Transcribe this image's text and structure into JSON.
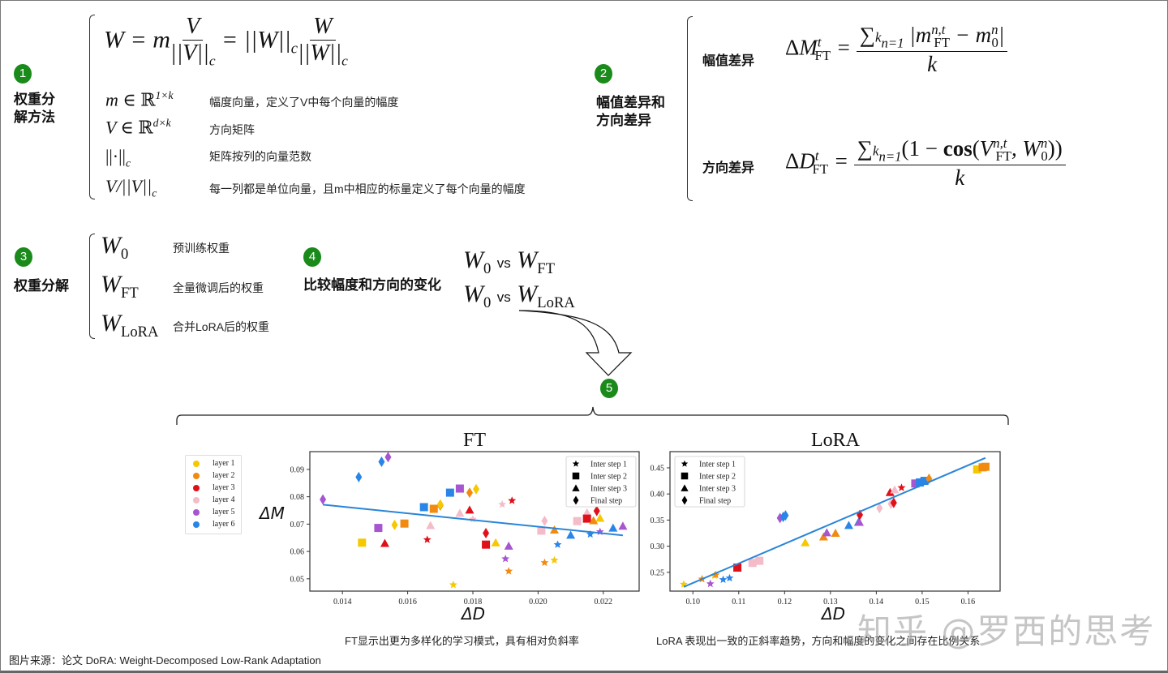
{
  "section1": {
    "badge": "1",
    "title_line1": "权重分",
    "title_line2": "解方法",
    "formula": "W = m V/||V||_c = ||W||_c W/||W||_c",
    "rows": [
      {
        "symbol": "m ∈ ℝ^(1×k)",
        "desc": "幅度向量，定义了V中每个向量的幅度"
      },
      {
        "symbol": "V ∈ ℝ^(d×k)",
        "desc": "方向矩阵"
      },
      {
        "symbol": "||·||_c",
        "desc": "矩阵按列的向量范数"
      },
      {
        "symbol": "V/||V||_c",
        "desc": "每一列都是单位向量，且m中相应的标量定义了每个向量的幅度"
      }
    ]
  },
  "section2": {
    "badge": "2",
    "title_line1": "幅值差异和",
    "title_line2": "方向差异",
    "magnitude_label": "幅值差异",
    "direction_label": "方向差异",
    "magnitude_formula": "ΔM_FT^t = Σ_{n=1}^k |m_FT^{n,t} − m_0^n| / k",
    "direction_formula": "ΔD_FT^t = Σ_{n=1}^k (1 − cos(V_FT^{n,t}, W_0^n)) / k"
  },
  "section3": {
    "badge": "3",
    "title": "权重分解",
    "rows": [
      {
        "symbol": "W_0",
        "desc": "预训练权重"
      },
      {
        "symbol": "W_FT",
        "desc": "全量微调后的权重"
      },
      {
        "symbol": "W_LoRA",
        "desc": "合并LoRA后的权重"
      }
    ]
  },
  "section4": {
    "badge": "4",
    "title": "比较幅度和方向的变化",
    "vs": "vs",
    "comparisons": [
      "W_0 vs W_FT",
      "W_0 vs W_LoRA"
    ]
  },
  "section5": {
    "badge": "5"
  },
  "layer_legend": [
    {
      "label": "layer 1",
      "color": "#f5c800"
    },
    {
      "label": "layer 2",
      "color": "#f08a10"
    },
    {
      "label": "layer 3",
      "color": "#e0101a"
    },
    {
      "label": "layer 4",
      "color": "#f4bcc8"
    },
    {
      "label": "layer 5",
      "color": "#a855d0"
    },
    {
      "label": "layer 6",
      "color": "#2a85e8"
    }
  ],
  "step_legend": [
    "Inter step 1",
    "Inter step 2",
    "Inter step 3",
    "Final step"
  ],
  "fit_line_color": "#2a85d8",
  "chart_data": [
    {
      "type": "scatter",
      "title": "FT",
      "xlabel": "ΔD",
      "ylabel": "ΔM",
      "xlim": [
        0.013,
        0.0231
      ],
      "ylim": [
        0.0455,
        0.0965
      ],
      "xticks": [
        "0.014",
        "0.016",
        "0.018",
        "0.020",
        "0.022"
      ],
      "yticks": [
        "0.05",
        "0.06",
        "0.07",
        "0.08",
        "0.09"
      ],
      "trend_line": {
        "x": [
          0.0134,
          0.0226
        ],
        "y": [
          0.0771,
          0.0659
        ]
      },
      "points": [
        {
          "x": 0.0134,
          "y": 0.079,
          "layer": 5,
          "step": "final"
        },
        {
          "x": 0.0145,
          "y": 0.0872,
          "layer": 6,
          "step": "final"
        },
        {
          "x": 0.0152,
          "y": 0.0928,
          "layer": 6,
          "step": "final"
        },
        {
          "x": 0.0154,
          "y": 0.0945,
          "layer": 5,
          "step": "final"
        },
        {
          "x": 0.0146,
          "y": 0.0632,
          "layer": 1,
          "step": "2"
        },
        {
          "x": 0.0151,
          "y": 0.0686,
          "layer": 5,
          "step": "2"
        },
        {
          "x": 0.0153,
          "y": 0.063,
          "layer": 3,
          "step": "3"
        },
        {
          "x": 0.0156,
          "y": 0.0697,
          "layer": 1,
          "step": "final"
        },
        {
          "x": 0.0159,
          "y": 0.0702,
          "layer": 2,
          "step": "2"
        },
        {
          "x": 0.0165,
          "y": 0.0762,
          "layer": 6,
          "step": "2"
        },
        {
          "x": 0.0166,
          "y": 0.0643,
          "layer": 3,
          "step": "1"
        },
        {
          "x": 0.0167,
          "y": 0.0695,
          "layer": 4,
          "step": "3"
        },
        {
          "x": 0.0168,
          "y": 0.0756,
          "layer": 2,
          "step": "2"
        },
        {
          "x": 0.017,
          "y": 0.0768,
          "layer": 2,
          "step": "final"
        },
        {
          "x": 0.017,
          "y": 0.0772,
          "layer": 1,
          "step": "final"
        },
        {
          "x": 0.0173,
          "y": 0.0815,
          "layer": 6,
          "step": "2"
        },
        {
          "x": 0.0174,
          "y": 0.0478,
          "layer": 1,
          "step": "1"
        },
        {
          "x": 0.0176,
          "y": 0.083,
          "layer": 5,
          "step": "2"
        },
        {
          "x": 0.0176,
          "y": 0.074,
          "layer": 4,
          "step": "3"
        },
        {
          "x": 0.0179,
          "y": 0.0815,
          "layer": 2,
          "step": "final"
        },
        {
          "x": 0.0179,
          "y": 0.0752,
          "layer": 3,
          "step": "3"
        },
        {
          "x": 0.018,
          "y": 0.0718,
          "layer": 4,
          "step": "1"
        },
        {
          "x": 0.0181,
          "y": 0.0828,
          "layer": 1,
          "step": "final"
        },
        {
          "x": 0.0184,
          "y": 0.0667,
          "layer": 3,
          "step": "final"
        },
        {
          "x": 0.0184,
          "y": 0.0625,
          "layer": 3,
          "step": "2"
        },
        {
          "x": 0.0187,
          "y": 0.0632,
          "layer": 1,
          "step": "3"
        },
        {
          "x": 0.0189,
          "y": 0.0772,
          "layer": 4,
          "step": "1"
        },
        {
          "x": 0.019,
          "y": 0.0573,
          "layer": 5,
          "step": "1"
        },
        {
          "x": 0.0191,
          "y": 0.0528,
          "layer": 2,
          "step": "1"
        },
        {
          "x": 0.0191,
          "y": 0.062,
          "layer": 5,
          "step": "3"
        },
        {
          "x": 0.0192,
          "y": 0.0786,
          "layer": 3,
          "step": "1"
        },
        {
          "x": 0.0201,
          "y": 0.0676,
          "layer": 4,
          "step": "2"
        },
        {
          "x": 0.0202,
          "y": 0.0712,
          "layer": 4,
          "step": "final"
        },
        {
          "x": 0.0202,
          "y": 0.0559,
          "layer": 2,
          "step": "1"
        },
        {
          "x": 0.0205,
          "y": 0.0568,
          "layer": 1,
          "step": "1"
        },
        {
          "x": 0.0205,
          "y": 0.0679,
          "layer": 2,
          "step": "3"
        },
        {
          "x": 0.0206,
          "y": 0.0625,
          "layer": 6,
          "step": "1"
        },
        {
          "x": 0.021,
          "y": 0.066,
          "layer": 6,
          "step": "3"
        },
        {
          "x": 0.0212,
          "y": 0.0711,
          "layer": 4,
          "step": "2"
        },
        {
          "x": 0.0215,
          "y": 0.0742,
          "layer": 4,
          "step": "3"
        },
        {
          "x": 0.0215,
          "y": 0.072,
          "layer": 3,
          "step": "2"
        },
        {
          "x": 0.0216,
          "y": 0.0663,
          "layer": 6,
          "step": "1"
        },
        {
          "x": 0.0217,
          "y": 0.0713,
          "layer": 2,
          "step": "3"
        },
        {
          "x": 0.0218,
          "y": 0.0748,
          "layer": 3,
          "step": "final"
        },
        {
          "x": 0.0219,
          "y": 0.0672,
          "layer": 5,
          "step": "1"
        },
        {
          "x": 0.0219,
          "y": 0.0722,
          "layer": 1,
          "step": "3"
        },
        {
          "x": 0.0223,
          "y": 0.0686,
          "layer": 6,
          "step": "3"
        },
        {
          "x": 0.0226,
          "y": 0.0693,
          "layer": 5,
          "step": "3"
        }
      ],
      "caption": "FT显示出更为多样化的学习模式，具有相对负斜率"
    },
    {
      "type": "scatter",
      "title": "LoRA",
      "xlabel": "ΔD",
      "ylabel": "",
      "xlim": [
        0.095,
        0.167
      ],
      "ylim": [
        0.214,
        0.481
      ],
      "xticks": [
        "0.10",
        "0.11",
        "0.12",
        "0.13",
        "0.14",
        "0.15",
        "0.16"
      ],
      "yticks": [
        "0.25",
        "0.30",
        "0.35",
        "0.40",
        "0.45"
      ],
      "trend_line": {
        "x": [
          0.098,
          0.1638
        ],
        "y": [
          0.222,
          0.469
        ]
      },
      "points": [
        {
          "x": 0.098,
          "y": 0.227,
          "layer": 1,
          "step": "1"
        },
        {
          "x": 0.102,
          "y": 0.237,
          "layer": 2,
          "step": "1"
        },
        {
          "x": 0.1038,
          "y": 0.228,
          "layer": 5,
          "step": "1"
        },
        {
          "x": 0.1047,
          "y": 0.244,
          "layer": 1,
          "step": "1"
        },
        {
          "x": 0.105,
          "y": 0.245,
          "layer": 2,
          "step": "1"
        },
        {
          "x": 0.1066,
          "y": 0.236,
          "layer": 6,
          "step": "1"
        },
        {
          "x": 0.108,
          "y": 0.239,
          "layer": 6,
          "step": "1"
        },
        {
          "x": 0.1097,
          "y": 0.259,
          "layer": 3,
          "step": "2"
        },
        {
          "x": 0.113,
          "y": 0.268,
          "layer": 4,
          "step": "2"
        },
        {
          "x": 0.1145,
          "y": 0.272,
          "layer": 4,
          "step": "2"
        },
        {
          "x": 0.119,
          "y": 0.354,
          "layer": 5,
          "step": "final"
        },
        {
          "x": 0.1197,
          "y": 0.356,
          "layer": 6,
          "step": "final"
        },
        {
          "x": 0.1202,
          "y": 0.359,
          "layer": 6,
          "step": "final"
        },
        {
          "x": 0.1245,
          "y": 0.307,
          "layer": 1,
          "step": "3"
        },
        {
          "x": 0.1285,
          "y": 0.318,
          "layer": 2,
          "step": "3"
        },
        {
          "x": 0.1292,
          "y": 0.326,
          "layer": 5,
          "step": "3"
        },
        {
          "x": 0.1311,
          "y": 0.325,
          "layer": 2,
          "step": "3"
        },
        {
          "x": 0.134,
          "y": 0.34,
          "layer": 6,
          "step": "3"
        },
        {
          "x": 0.1361,
          "y": 0.346,
          "layer": 6,
          "step": "3"
        },
        {
          "x": 0.1363,
          "y": 0.346,
          "layer": 5,
          "step": "3"
        },
        {
          "x": 0.1364,
          "y": 0.36,
          "layer": 3,
          "step": "final"
        },
        {
          "x": 0.1407,
          "y": 0.373,
          "layer": 4,
          "step": "final"
        },
        {
          "x": 0.143,
          "y": 0.403,
          "layer": 3,
          "step": "3"
        },
        {
          "x": 0.1432,
          "y": 0.381,
          "layer": 4,
          "step": "final"
        },
        {
          "x": 0.1438,
          "y": 0.383,
          "layer": 3,
          "step": "final"
        },
        {
          "x": 0.144,
          "y": 0.408,
          "layer": 4,
          "step": "3"
        },
        {
          "x": 0.1455,
          "y": 0.412,
          "layer": 3,
          "step": "1"
        },
        {
          "x": 0.1485,
          "y": 0.42,
          "layer": 5,
          "step": "2"
        },
        {
          "x": 0.1495,
          "y": 0.422,
          "layer": 6,
          "step": "2"
        },
        {
          "x": 0.1505,
          "y": 0.425,
          "layer": 6,
          "step": "2"
        },
        {
          "x": 0.1515,
          "y": 0.429,
          "layer": 2,
          "step": "final"
        },
        {
          "x": 0.162,
          "y": 0.447,
          "layer": 1,
          "step": "2"
        },
        {
          "x": 0.1632,
          "y": 0.451,
          "layer": 2,
          "step": "2"
        },
        {
          "x": 0.1638,
          "y": 0.452,
          "layer": 2,
          "step": "2"
        }
      ],
      "caption": "LoRA 表现出一致的正斜率趋势，方向和幅度的变化之间存在比例关系"
    }
  ],
  "source": "图片来源：论文 DoRA: Weight-Decomposed Low-Rank Adaptation",
  "watermark": "知乎 @罗西的思考"
}
